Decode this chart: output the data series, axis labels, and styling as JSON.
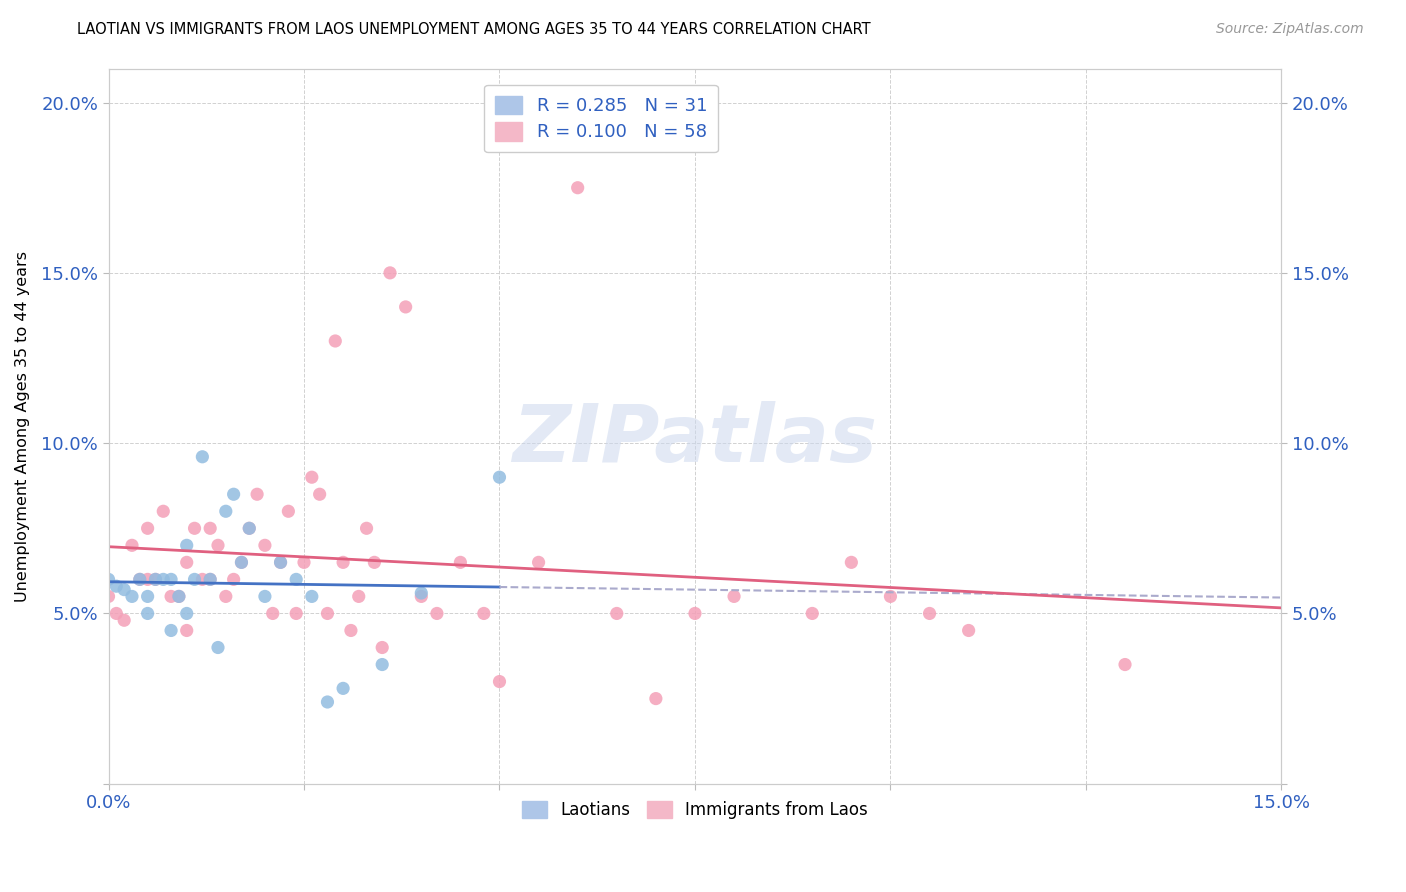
{
  "title": "LAOTIAN VS IMMIGRANTS FROM LAOS UNEMPLOYMENT AMONG AGES 35 TO 44 YEARS CORRELATION CHART",
  "source": "Source: ZipAtlas.com",
  "ylabel": "Unemployment Among Ages 35 to 44 years",
  "xlim": [
    0.0,
    0.15
  ],
  "ylim": [
    0.0,
    0.21
  ],
  "xtick_vals": [
    0.0,
    0.025,
    0.05,
    0.075,
    0.1,
    0.125,
    0.15
  ],
  "ytick_vals": [
    0.0,
    0.05,
    0.1,
    0.15,
    0.2
  ],
  "series1_color": "#92bce0",
  "series2_color": "#f4a0b8",
  "trendline1_color": "#4472c4",
  "trendline2_color": "#e06080",
  "trendline1_dash_color": "#aaaacc",
  "watermark": "ZIPatlas",
  "laotians_x": [
    0.0,
    0.001,
    0.002,
    0.003,
    0.004,
    0.005,
    0.005,
    0.006,
    0.007,
    0.008,
    0.008,
    0.009,
    0.01,
    0.01,
    0.011,
    0.012,
    0.013,
    0.014,
    0.015,
    0.016,
    0.017,
    0.018,
    0.02,
    0.022,
    0.024,
    0.026,
    0.028,
    0.03,
    0.035,
    0.04,
    0.05
  ],
  "laotians_y": [
    0.06,
    0.058,
    0.057,
    0.055,
    0.06,
    0.055,
    0.05,
    0.06,
    0.06,
    0.045,
    0.06,
    0.055,
    0.07,
    0.05,
    0.06,
    0.096,
    0.06,
    0.04,
    0.08,
    0.085,
    0.065,
    0.075,
    0.055,
    0.065,
    0.06,
    0.055,
    0.024,
    0.028,
    0.035,
    0.056,
    0.09
  ],
  "immigrants_x": [
    0.0,
    0.001,
    0.002,
    0.003,
    0.004,
    0.005,
    0.005,
    0.006,
    0.007,
    0.008,
    0.009,
    0.01,
    0.01,
    0.011,
    0.012,
    0.013,
    0.013,
    0.014,
    0.015,
    0.016,
    0.017,
    0.018,
    0.019,
    0.02,
    0.021,
    0.022,
    0.023,
    0.024,
    0.025,
    0.026,
    0.027,
    0.028,
    0.029,
    0.03,
    0.031,
    0.032,
    0.033,
    0.034,
    0.035,
    0.036,
    0.038,
    0.04,
    0.042,
    0.045,
    0.048,
    0.05,
    0.055,
    0.06,
    0.065,
    0.07,
    0.075,
    0.08,
    0.09,
    0.095,
    0.1,
    0.105,
    0.11,
    0.13
  ],
  "immigrants_y": [
    0.055,
    0.05,
    0.048,
    0.07,
    0.06,
    0.06,
    0.075,
    0.06,
    0.08,
    0.055,
    0.055,
    0.045,
    0.065,
    0.075,
    0.06,
    0.06,
    0.075,
    0.07,
    0.055,
    0.06,
    0.065,
    0.075,
    0.085,
    0.07,
    0.05,
    0.065,
    0.08,
    0.05,
    0.065,
    0.09,
    0.085,
    0.05,
    0.13,
    0.065,
    0.045,
    0.055,
    0.075,
    0.065,
    0.04,
    0.15,
    0.14,
    0.055,
    0.05,
    0.065,
    0.05,
    0.03,
    0.065,
    0.175,
    0.05,
    0.025,
    0.05,
    0.055,
    0.05,
    0.065,
    0.055,
    0.05,
    0.045,
    0.035
  ]
}
